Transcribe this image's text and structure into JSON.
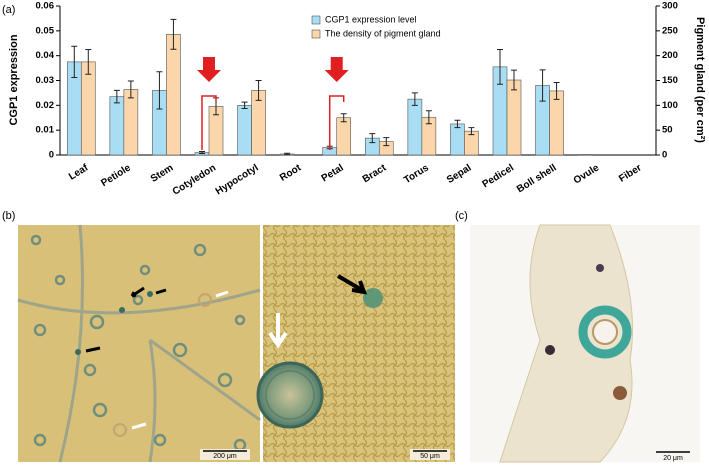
{
  "chart_data": {
    "type": "bar",
    "panel_labels": [
      "(a)",
      "(b)",
      "(c)"
    ],
    "y_label": "CGP1 expression",
    "y2_label": "Pigment gland (per cm²)",
    "categories": [
      "Leaf",
      "Petiole",
      "Stem",
      "Cotyledon",
      "Hypocotyl",
      "Root",
      "Petal",
      "Bract",
      "Torus",
      "Sepal",
      "Pedicel",
      "Boll shell",
      "Ovule",
      "Fiber"
    ],
    "series": [
      {
        "name": "CGP1 expression level",
        "color": "#a9ddf3",
        "values": [
          0.0375,
          0.0235,
          0.026,
          0.001,
          0.02,
          0.0004,
          0.003,
          0.0068,
          0.0225,
          0.0125,
          0.0355,
          0.028,
          0.0002,
          0
        ],
        "errors": [
          0.0063,
          0.0025,
          0.0075,
          0.0004,
          0.0013,
          0.0003,
          0.0005,
          0.0018,
          0.0025,
          0.0015,
          0.007,
          0.0063,
          0,
          0
        ]
      },
      {
        "name": "The density of pigment gland",
        "color": "#fbd6aa",
        "axis": "y2",
        "values": [
          187.5,
          132,
          243,
          98,
          130,
          0,
          75,
          27,
          76,
          48,
          151,
          129,
          0,
          0
        ],
        "errors": [
          25,
          17,
          30,
          17,
          20,
          0,
          8,
          8,
          13,
          7,
          20,
          17,
          0,
          0
        ]
      }
    ],
    "ylim": [
      0,
      0.06
    ],
    "yticks": [
      0,
      0.01,
      0.02,
      0.03,
      0.04,
      0.05,
      0.06
    ],
    "y2lim": [
      0,
      300
    ],
    "y2ticks": [
      0,
      50,
      100,
      150,
      200,
      250,
      300
    ],
    "highlight_categories": [
      3,
      6
    ],
    "scale_bars": [
      "200 μm",
      "50 μm",
      "20 μm"
    ]
  }
}
